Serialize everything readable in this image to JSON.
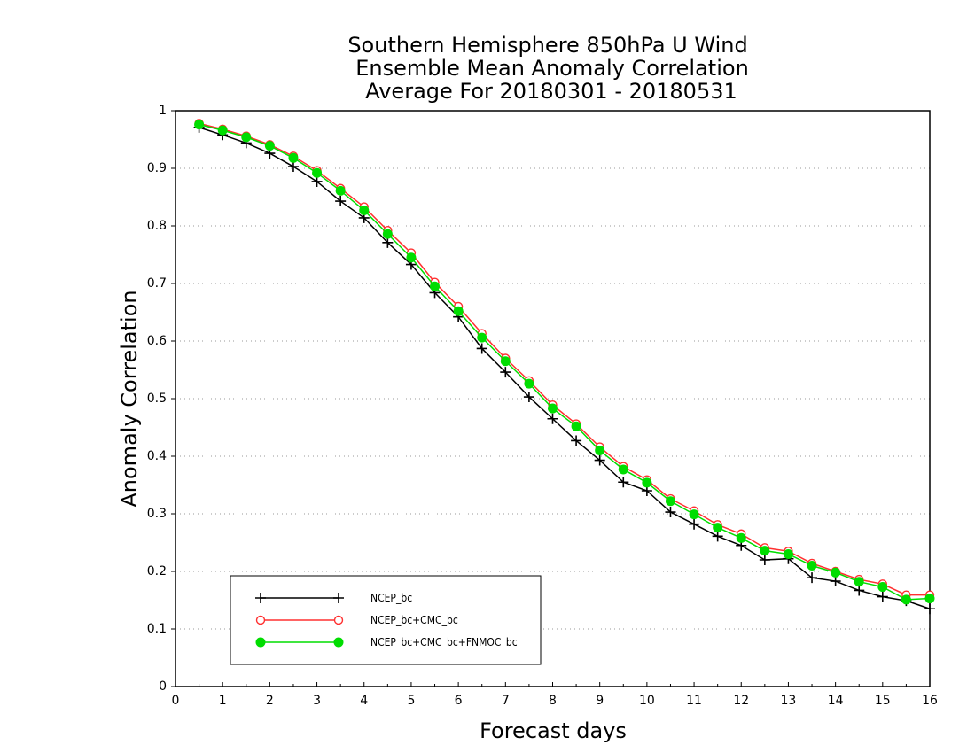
{
  "chart_data": {
    "type": "line",
    "title": [
      "Southern Hemisphere 850hPa U Wind",
      "Ensemble Mean Anomaly Correlation",
      "Average For 20180301 - 20180531"
    ],
    "xlabel": "Forecast days",
    "ylabel": "Anomaly Correlation",
    "xlim": [
      0,
      16
    ],
    "ylim": [
      0,
      1
    ],
    "xticks": [
      "0",
      "1",
      "2",
      "3",
      "4",
      "5",
      "6",
      "7",
      "8",
      "9",
      "10",
      "11",
      "12",
      "13",
      "14",
      "15",
      "16"
    ],
    "yticks": [
      "0",
      "0.1",
      "0.2",
      "0.3",
      "0.4",
      "0.5",
      "0.6",
      "0.7",
      "0.8",
      "0.9",
      "1"
    ],
    "grid": "horizontal dotted",
    "legend_position": "bottom-left",
    "x": [
      0.5,
      1,
      1.5,
      2,
      2.5,
      3,
      3.5,
      4,
      4.5,
      5,
      5.5,
      6,
      6.5,
      7,
      7.5,
      8,
      8.5,
      9,
      9.5,
      10,
      10.5,
      11,
      11.5,
      12,
      12.5,
      13,
      13.5,
      14,
      14.5,
      15,
      15.5,
      16
    ],
    "series": [
      {
        "name": "NCEP_bc",
        "color": "#000000",
        "marker": "plus",
        "values": [
          0.971,
          0.958,
          0.944,
          0.926,
          0.903,
          0.877,
          0.843,
          0.814,
          0.771,
          0.733,
          0.684,
          0.642,
          0.587,
          0.546,
          0.503,
          0.465,
          0.427,
          0.393,
          0.355,
          0.34,
          0.303,
          0.282,
          0.261,
          0.245,
          0.22,
          0.222,
          0.189,
          0.183,
          0.167,
          0.156,
          0.149,
          0.135
        ]
      },
      {
        "name": "NCEP_bc+CMC_bc",
        "color": "#ff3030",
        "marker": "open-circle",
        "values": [
          0.978,
          0.968,
          0.956,
          0.941,
          0.921,
          0.896,
          0.865,
          0.833,
          0.792,
          0.753,
          0.702,
          0.66,
          0.613,
          0.57,
          0.531,
          0.489,
          0.456,
          0.416,
          0.382,
          0.359,
          0.326,
          0.305,
          0.281,
          0.265,
          0.241,
          0.235,
          0.214,
          0.2,
          0.186,
          0.178,
          0.159,
          0.159
        ]
      },
      {
        "name": "NCEP_bc+CMC_bc+FNMOC_bc",
        "color": "#00dd00",
        "marker": "filled-circle",
        "values": [
          0.976,
          0.966,
          0.954,
          0.939,
          0.918,
          0.892,
          0.861,
          0.827,
          0.786,
          0.745,
          0.695,
          0.652,
          0.606,
          0.565,
          0.526,
          0.483,
          0.452,
          0.41,
          0.377,
          0.354,
          0.322,
          0.299,
          0.276,
          0.258,
          0.236,
          0.23,
          0.21,
          0.198,
          0.182,
          0.173,
          0.151,
          0.153
        ]
      }
    ]
  }
}
